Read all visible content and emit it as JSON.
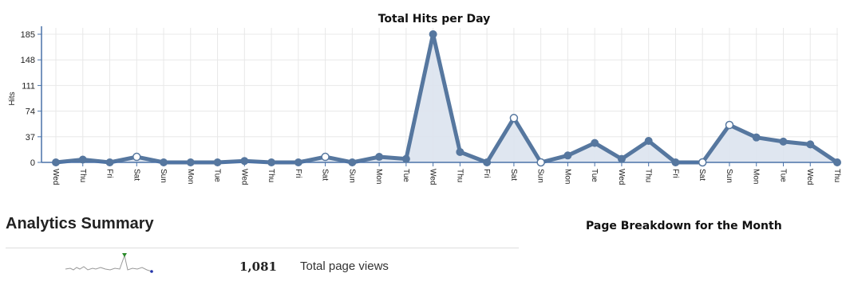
{
  "chart_data": {
    "type": "area",
    "title": "Total Hits per Day",
    "ylabel": "Hits",
    "xlabel": "",
    "ylim": [
      0,
      185
    ],
    "yticks": [
      0,
      37,
      74,
      111,
      148,
      185
    ],
    "grid": true,
    "x": [
      "Wed",
      "Thu",
      "Fri",
      "Sat",
      "Sun",
      "Mon",
      "Tue",
      "Wed",
      "Thu",
      "Fri",
      "Sat",
      "Sun",
      "Mon",
      "Tue",
      "Wed",
      "Thu",
      "Fri",
      "Sat",
      "Sun",
      "Mon",
      "Tue",
      "Wed",
      "Thu",
      "Fri",
      "Sat",
      "Sun",
      "Mon",
      "Tue",
      "Wed",
      "Thu"
    ],
    "series": [
      {
        "values": [
          0,
          4,
          0,
          8,
          0,
          0,
          0,
          2,
          0,
          0,
          8,
          0,
          8,
          5,
          185,
          15,
          0,
          64,
          0,
          10,
          28,
          5,
          31,
          0,
          0,
          54,
          36,
          30,
          26,
          0
        ]
      }
    ],
    "colors": {
      "line": "#56779f",
      "fill": "#dce3ee",
      "axis": "#4a72a8",
      "grid": "#e8e8e8"
    }
  },
  "summary": {
    "title": "Analytics Summary",
    "page_views_value": "1,081",
    "page_views_label": "Total page views"
  },
  "breakdown": {
    "title": "Page Breakdown for the Month"
  }
}
